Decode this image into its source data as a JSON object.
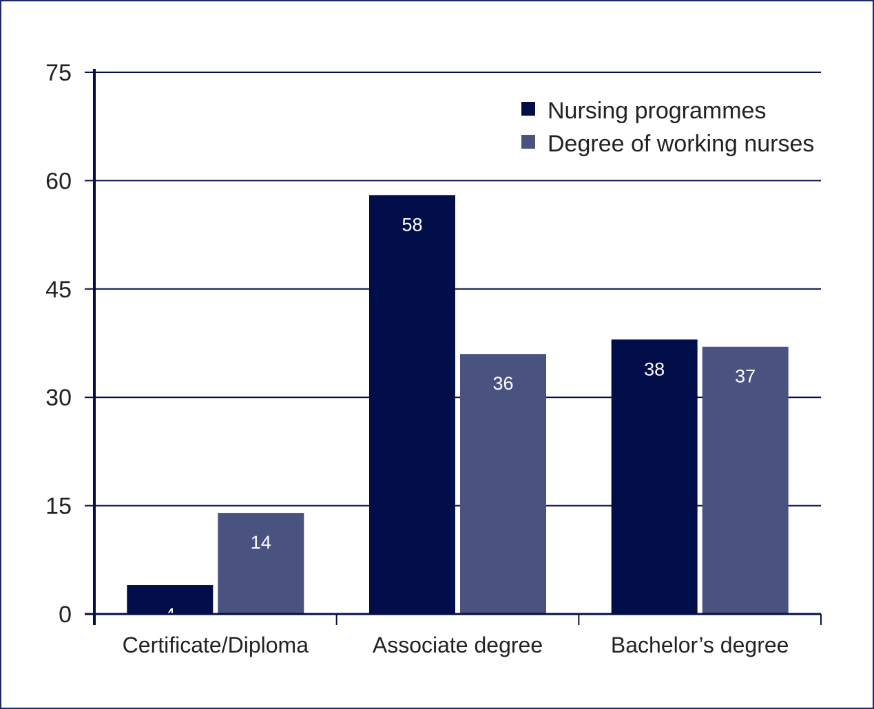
{
  "chart_data": {
    "type": "bar",
    "categories": [
      "Certificate/Diploma",
      "Associate degree",
      "Bachelor’s degree"
    ],
    "series": [
      {
        "name": "Nursing programmes",
        "values": [
          4,
          58,
          38
        ],
        "color": "#020e4a"
      },
      {
        "name": "Degree of working nurses",
        "values": [
          14,
          36,
          37
        ],
        "color": "#4a527f"
      }
    ],
    "y_ticks": [
      "0",
      "15",
      "30",
      "45",
      "60",
      "75"
    ],
    "ylim": [
      0,
      75
    ],
    "grid": true,
    "legend_position": "top-right",
    "axis_color": "#020e4a"
  }
}
